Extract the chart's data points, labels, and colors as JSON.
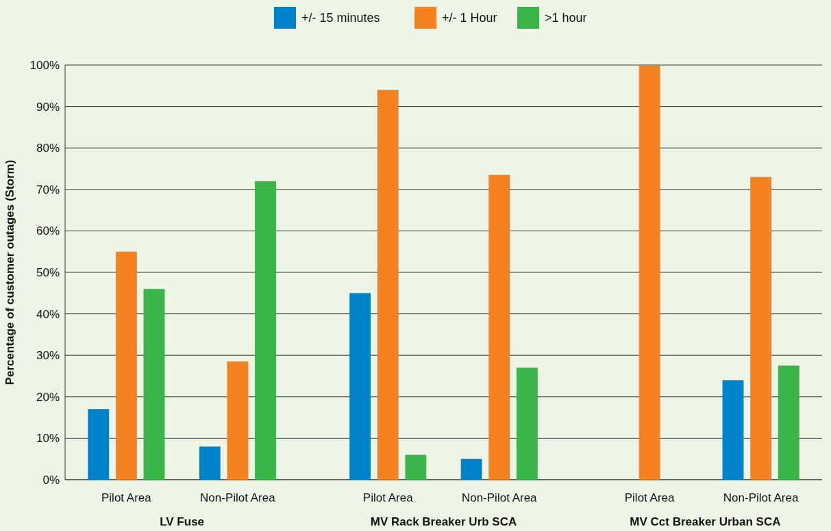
{
  "chart_data": {
    "type": "bar",
    "ylabel": "Percentage of customer outages (Storm)",
    "categories": [
      "Pilot Area",
      "Non-Pilot Area",
      "Pilot Area",
      "Non-Pilot Area",
      "Pilot Area",
      "Non-Pilot Area"
    ],
    "annotations": [
      "LV Fuse",
      "MV Rack Breaker Urb SCA",
      "MV Cct Breaker Urban SCA"
    ],
    "series": [
      {
        "name": "+/- 15 minutes",
        "color": "#0083cb",
        "values": [
          17,
          8,
          45,
          5,
          0,
          24
        ]
      },
      {
        "name": "+/- 1 Hour",
        "color": "#f58220",
        "values": [
          55,
          28.5,
          94,
          73.5,
          100,
          73
        ]
      },
      {
        "name": ">1 hour",
        "color": "#39b54a",
        "values": [
          46,
          72,
          6,
          27,
          0,
          27.5
        ]
      }
    ],
    "ylim": [
      0,
      100
    ],
    "yticks": [
      {
        "value": 0,
        "label": "0%"
      },
      {
        "value": 10,
        "label": "10%"
      },
      {
        "value": 20,
        "label": "20%"
      },
      {
        "value": 30,
        "label": "30%"
      },
      {
        "value": 40,
        "label": "40%"
      },
      {
        "value": 50,
        "label": "50%"
      },
      {
        "value": 60,
        "label": "60%"
      },
      {
        "value": 70,
        "label": "70%"
      },
      {
        "value": 80,
        "label": "80%"
      },
      {
        "value": 90,
        "label": "90%"
      },
      {
        "value": 100,
        "label": "100%"
      }
    ],
    "grid": "y",
    "legend": "top"
  }
}
